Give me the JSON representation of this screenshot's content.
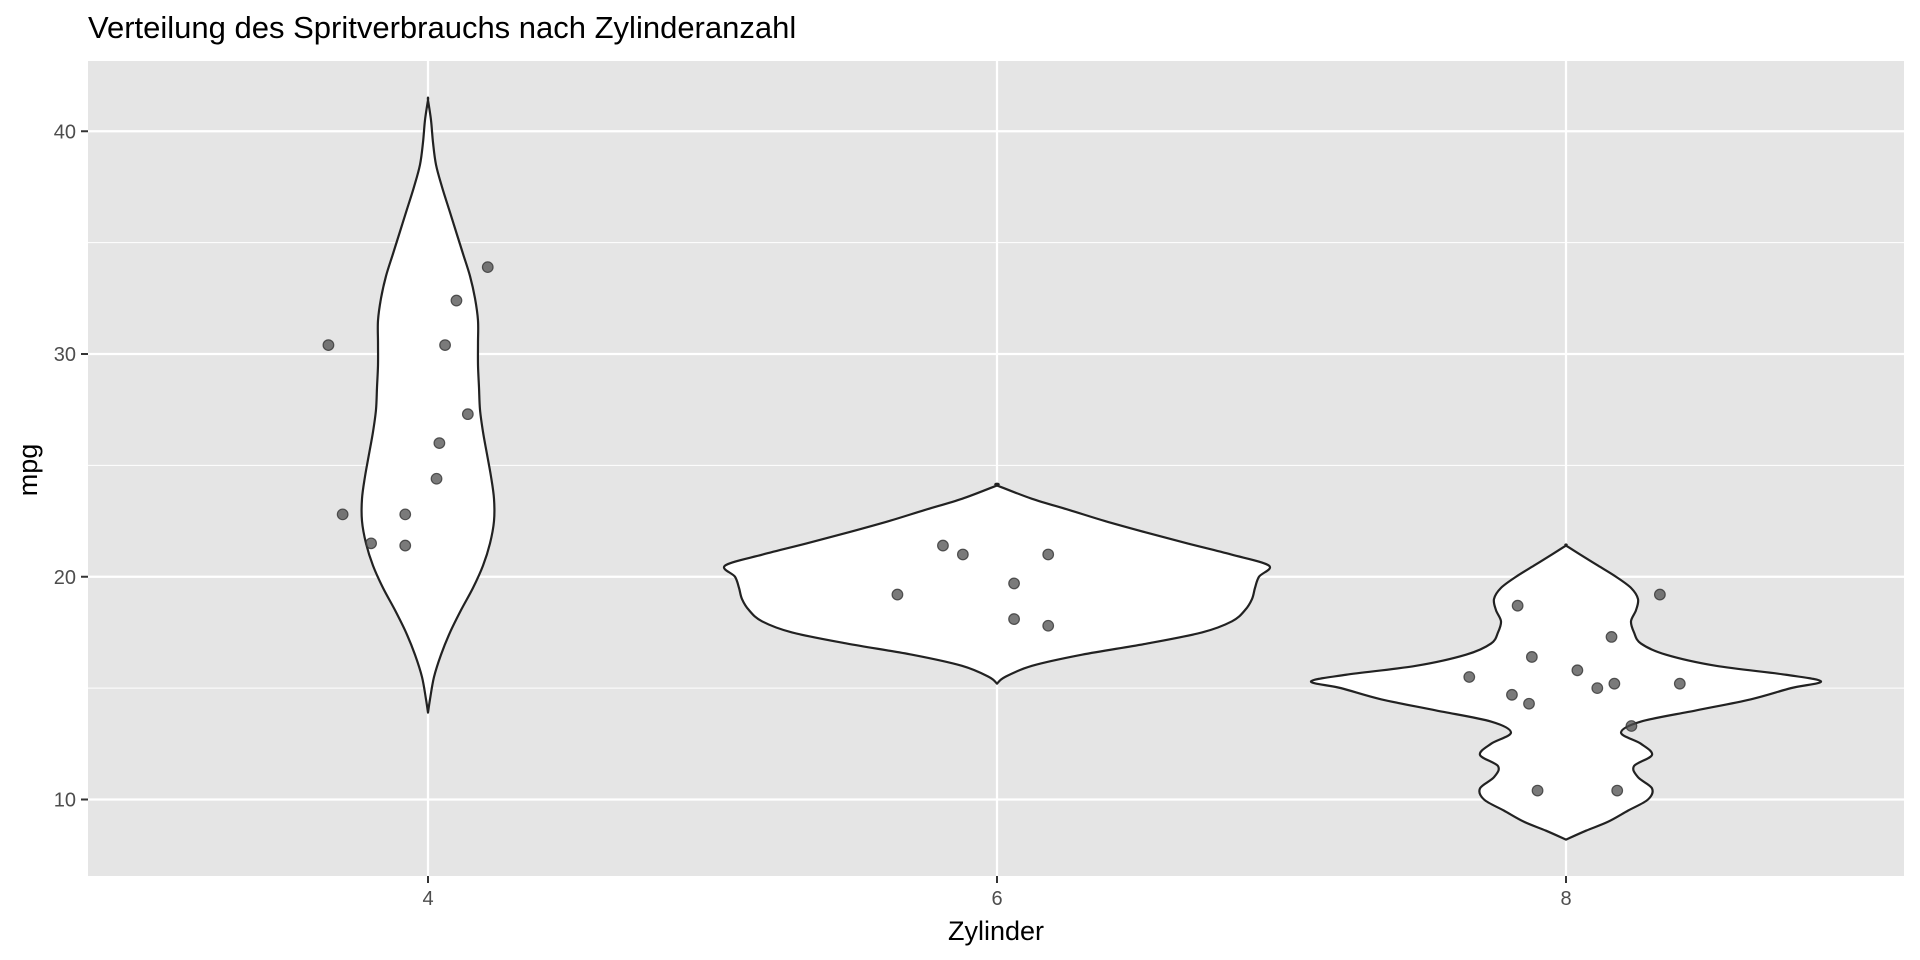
{
  "chart_data": {
    "type": "violin",
    "title": "Verteilung des Spritverbrauchs nach Zylinderanzahl",
    "xlabel": "Zylinder",
    "ylabel": "mpg",
    "categories": [
      "4",
      "6",
      "8"
    ],
    "x_tick_labels": [
      "4",
      "6",
      "8"
    ],
    "y_tick_labels": [
      "10",
      "20",
      "30",
      "40"
    ],
    "y_ticks": [
      10,
      20,
      30,
      40
    ],
    "ylim": [
      6.6,
      43.1
    ],
    "grid": true,
    "legend": "none",
    "colors": {
      "panel_background": "#e5e5e5",
      "grid": "#ffffff",
      "violin_fill": "#ffffff",
      "violin_outline": "#222222",
      "point": "#4d4d4d"
    },
    "series": [
      {
        "category": "4",
        "y_range": [
          13.9,
          41.4
        ],
        "points": [
          {
            "x": 3.65,
            "y": 30.4
          },
          {
            "x": 4.21,
            "y": 33.9
          },
          {
            "x": 4.1,
            "y": 32.4
          },
          {
            "x": 4.06,
            "y": 30.4
          },
          {
            "x": 4.14,
            "y": 27.3
          },
          {
            "x": 4.04,
            "y": 26.0
          },
          {
            "x": 4.03,
            "y": 24.4
          },
          {
            "x": 3.7,
            "y": 22.8
          },
          {
            "x": 3.92,
            "y": 22.8
          },
          {
            "x": 3.8,
            "y": 21.5
          },
          {
            "x": 3.92,
            "y": 21.4
          }
        ]
      },
      {
        "category": "6",
        "y_range": [
          15.2,
          24.1
        ],
        "points": [
          {
            "x": 5.81,
            "y": 21.4
          },
          {
            "x": 5.88,
            "y": 21.0
          },
          {
            "x": 6.18,
            "y": 21.0
          },
          {
            "x": 6.06,
            "y": 19.7
          },
          {
            "x": 5.65,
            "y": 19.2
          },
          {
            "x": 6.06,
            "y": 18.1
          },
          {
            "x": 6.18,
            "y": 17.8
          }
        ]
      },
      {
        "category": "8",
        "y_range": [
          8.2,
          21.4
        ],
        "points": [
          {
            "x": 8.33,
            "y": 19.2
          },
          {
            "x": 7.83,
            "y": 18.7
          },
          {
            "x": 8.16,
            "y": 17.3
          },
          {
            "x": 7.88,
            "y": 16.4
          },
          {
            "x": 8.04,
            "y": 15.8
          },
          {
            "x": 7.66,
            "y": 15.5
          },
          {
            "x": 8.17,
            "y": 15.2
          },
          {
            "x": 8.4,
            "y": 15.2
          },
          {
            "x": 8.11,
            "y": 15.0
          },
          {
            "x": 7.81,
            "y": 14.7
          },
          {
            "x": 7.87,
            "y": 14.3
          },
          {
            "x": 8.23,
            "y": 13.3
          },
          {
            "x": 7.9,
            "y": 10.4
          },
          {
            "x": 8.18,
            "y": 10.4
          }
        ]
      }
    ]
  }
}
